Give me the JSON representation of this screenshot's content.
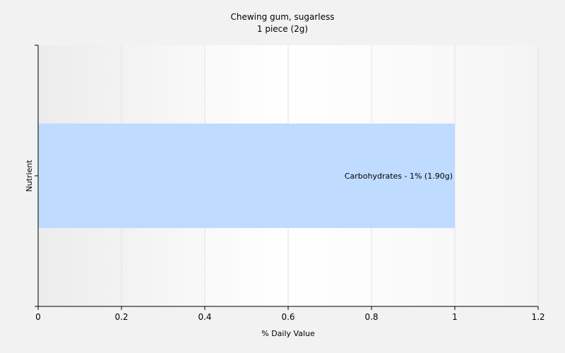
{
  "chart_data": {
    "type": "bar",
    "orientation": "horizontal",
    "title": "Chewing gum, sugarless",
    "subtitle": "1 piece (2g)",
    "xlabel": "% Daily Value",
    "ylabel": "Nutrient",
    "xlim": [
      0,
      1.2
    ],
    "xticks": [
      "0",
      "0.2",
      "0.4",
      "0.6",
      "0.8",
      "1",
      "1.2"
    ],
    "grid": true,
    "categories": [
      "Carbohydrates"
    ],
    "values": [
      1
    ],
    "bar_labels": [
      "Carbohydrates - 1% (1.90g)"
    ],
    "colors": {
      "bar": "#bfdbff",
      "background": "#f2f2f2",
      "axis": "#000000"
    }
  }
}
